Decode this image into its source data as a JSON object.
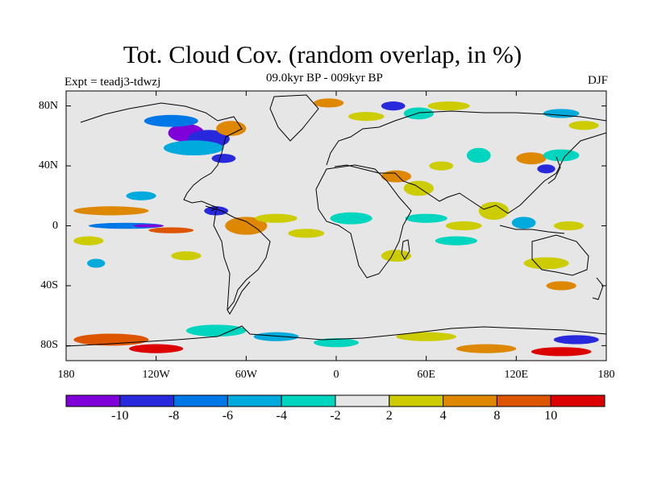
{
  "title": "Tot. Cloud Cov. (random overlap, in %)",
  "subtitle": "09.0kyr BP - 009kyr BP",
  "experiment": "Expt = teadj3-tdwzj",
  "season": "DJF",
  "colors": {
    "background_field": "#e6e6e6",
    "coastline": "#000000",
    "frame": "#000000"
  },
  "map": {
    "lat_axis": {
      "ticks": [
        80,
        40,
        0,
        -40,
        -80
      ],
      "labels": [
        "80N",
        "40N",
        "0",
        "40S",
        "80S"
      ]
    },
    "lon_axis": {
      "ticks": [
        -180,
        -120,
        -60,
        0,
        60,
        120,
        180
      ],
      "labels": [
        "180",
        "120W",
        "60W",
        "0",
        "60E",
        "120E",
        "180"
      ]
    },
    "lon_range": [
      -180,
      180
    ],
    "lat_range": [
      -90,
      90
    ],
    "anomaly_patches": [
      {
        "lon": -100,
        "lat": 62,
        "rx": 12,
        "ry": 6,
        "color": "#7f00d9"
      },
      {
        "lon": -85,
        "lat": 58,
        "rx": 14,
        "ry": 6,
        "color": "#2828dc"
      },
      {
        "lon": -110,
        "lat": 70,
        "rx": 18,
        "ry": 4,
        "color": "#0077e6"
      },
      {
        "lon": -95,
        "lat": 52,
        "rx": 20,
        "ry": 5,
        "color": "#00aadd"
      },
      {
        "lon": -75,
        "lat": 45,
        "rx": 8,
        "ry": 3,
        "color": "#2828dc"
      },
      {
        "lon": -70,
        "lat": 65,
        "rx": 10,
        "ry": 5,
        "color": "#dd8800"
      },
      {
        "lon": -5,
        "lat": 82,
        "rx": 10,
        "ry": 3,
        "color": "#dd8800"
      },
      {
        "lon": 38,
        "lat": 80,
        "rx": 8,
        "ry": 3,
        "color": "#2828dc"
      },
      {
        "lon": 20,
        "lat": 73,
        "rx": 12,
        "ry": 3,
        "color": "#cccc00"
      },
      {
        "lon": 55,
        "lat": 75,
        "rx": 10,
        "ry": 4,
        "color": "#00d5c0"
      },
      {
        "lon": 75,
        "lat": 80,
        "rx": 14,
        "ry": 3,
        "color": "#cccc00"
      },
      {
        "lon": 150,
        "lat": 75,
        "rx": 12,
        "ry": 3,
        "color": "#00aadd"
      },
      {
        "lon": 165,
        "lat": 67,
        "rx": 10,
        "ry": 3,
        "color": "#cccc00"
      },
      {
        "lon": 40,
        "lat": 33,
        "rx": 10,
        "ry": 4,
        "color": "#dd8800"
      },
      {
        "lon": 55,
        "lat": 25,
        "rx": 10,
        "ry": 5,
        "color": "#cccc00"
      },
      {
        "lon": 70,
        "lat": 40,
        "rx": 8,
        "ry": 3,
        "color": "#cccc00"
      },
      {
        "lon": 95,
        "lat": 47,
        "rx": 8,
        "ry": 5,
        "color": "#00d5c0"
      },
      {
        "lon": 130,
        "lat": 45,
        "rx": 10,
        "ry": 4,
        "color": "#dd8800"
      },
      {
        "lon": 140,
        "lat": 38,
        "rx": 6,
        "ry": 3,
        "color": "#2828dc"
      },
      {
        "lon": 150,
        "lat": 47,
        "rx": 12,
        "ry": 4,
        "color": "#00d5c0"
      },
      {
        "lon": -150,
        "lat": 10,
        "rx": 25,
        "ry": 3,
        "color": "#dd8800"
      },
      {
        "lon": -140,
        "lat": 0,
        "rx": 25,
        "ry": 2,
        "color": "#0077e6"
      },
      {
        "lon": -125,
        "lat": 0,
        "rx": 10,
        "ry": 1,
        "color": "#7f00d9"
      },
      {
        "lon": -110,
        "lat": -3,
        "rx": 15,
        "ry": 2,
        "color": "#dd5500"
      },
      {
        "lon": -130,
        "lat": 20,
        "rx": 10,
        "ry": 3,
        "color": "#00aadd"
      },
      {
        "lon": -80,
        "lat": 10,
        "rx": 8,
        "ry": 3,
        "color": "#2828dc"
      },
      {
        "lon": -60,
        "lat": 0,
        "rx": 14,
        "ry": 6,
        "color": "#dd8800"
      },
      {
        "lon": -40,
        "lat": 5,
        "rx": 14,
        "ry": 3,
        "color": "#cccc00"
      },
      {
        "lon": -20,
        "lat": -5,
        "rx": 12,
        "ry": 3,
        "color": "#cccc00"
      },
      {
        "lon": 10,
        "lat": 5,
        "rx": 14,
        "ry": 4,
        "color": "#00d5c0"
      },
      {
        "lon": 60,
        "lat": 5,
        "rx": 14,
        "ry": 3,
        "color": "#00d5c0"
      },
      {
        "lon": 85,
        "lat": 0,
        "rx": 12,
        "ry": 3,
        "color": "#cccc00"
      },
      {
        "lon": 105,
        "lat": 10,
        "rx": 10,
        "ry": 6,
        "color": "#cccc00"
      },
      {
        "lon": 125,
        "lat": 2,
        "rx": 8,
        "ry": 4,
        "color": "#00aadd"
      },
      {
        "lon": 155,
        "lat": 0,
        "rx": 10,
        "ry": 3,
        "color": "#cccc00"
      },
      {
        "lon": -165,
        "lat": -10,
        "rx": 10,
        "ry": 3,
        "color": "#cccc00"
      },
      {
        "lon": -160,
        "lat": -25,
        "rx": 6,
        "ry": 3,
        "color": "#00aadd"
      },
      {
        "lon": -100,
        "lat": -20,
        "rx": 10,
        "ry": 3,
        "color": "#cccc00"
      },
      {
        "lon": 40,
        "lat": -20,
        "rx": 10,
        "ry": 4,
        "color": "#cccc00"
      },
      {
        "lon": 80,
        "lat": -10,
        "rx": 14,
        "ry": 3,
        "color": "#00d5c0"
      },
      {
        "lon": 140,
        "lat": -25,
        "rx": 15,
        "ry": 4,
        "color": "#cccc00"
      },
      {
        "lon": 150,
        "lat": -40,
        "rx": 10,
        "ry": 3,
        "color": "#dd8800"
      },
      {
        "lon": -150,
        "lat": -76,
        "rx": 25,
        "ry": 4,
        "color": "#dd5500"
      },
      {
        "lon": -120,
        "lat": -82,
        "rx": 18,
        "ry": 3,
        "color": "#dd0000"
      },
      {
        "lon": -80,
        "lat": -70,
        "rx": 20,
        "ry": 4,
        "color": "#00d5c0"
      },
      {
        "lon": -40,
        "lat": -74,
        "rx": 15,
        "ry": 3,
        "color": "#00aadd"
      },
      {
        "lon": 0,
        "lat": -78,
        "rx": 15,
        "ry": 3,
        "color": "#00d5c0"
      },
      {
        "lon": 60,
        "lat": -74,
        "rx": 20,
        "ry": 3,
        "color": "#cccc00"
      },
      {
        "lon": 100,
        "lat": -82,
        "rx": 20,
        "ry": 3,
        "color": "#dd8800"
      },
      {
        "lon": 150,
        "lat": -84,
        "rx": 20,
        "ry": 3,
        "color": "#dd0000"
      },
      {
        "lon": 160,
        "lat": -76,
        "rx": 15,
        "ry": 3,
        "color": "#2828dc"
      }
    ]
  },
  "colorbar": {
    "colors": [
      "#7f00d9",
      "#2828dc",
      "#0077e6",
      "#00aadd",
      "#00d5c0",
      "#e6e6e6",
      "#cccc00",
      "#dd8800",
      "#dd5500",
      "#dd0000"
    ],
    "labels": [
      "-10",
      "-8",
      "-6",
      "-4",
      "-2",
      "2",
      "4",
      "8",
      "10"
    ]
  }
}
